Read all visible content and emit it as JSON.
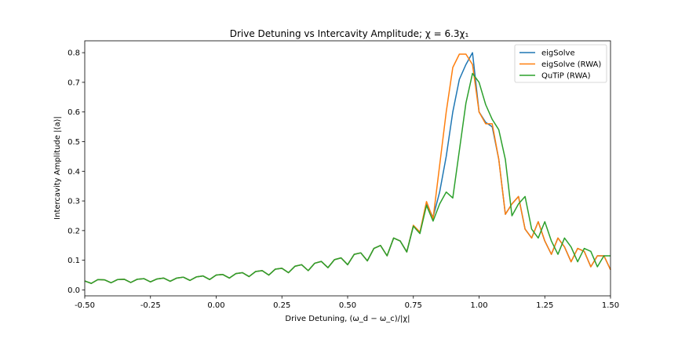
{
  "chart_data": {
    "type": "line",
    "title": "Drive Detuning vs Intercavity Amplitude; χ = 6.3χ₁",
    "xlabel": "Drive Detuning, (ω_d − ω_c)/|χ|",
    "ylabel": "Intercavity Amplitude |⟨a⟩|",
    "xlim": [
      -0.5,
      1.5
    ],
    "ylim": [
      -0.02,
      0.84
    ],
    "xticks": [
      "-0.50",
      "-0.25",
      "0.00",
      "0.25",
      "0.50",
      "0.75",
      "1.00",
      "1.25",
      "1.50"
    ],
    "xtick_values": [
      -0.5,
      -0.25,
      0.0,
      0.25,
      0.5,
      0.75,
      1.0,
      1.25,
      1.5
    ],
    "yticks": [
      "0.0",
      "0.1",
      "0.2",
      "0.3",
      "0.4",
      "0.5",
      "0.6",
      "0.7",
      "0.8"
    ],
    "ytick_values": [
      0.0,
      0.1,
      0.2,
      0.3,
      0.4,
      0.5,
      0.6,
      0.7,
      0.8
    ],
    "grid": false,
    "legend_position": "top-right",
    "x": [
      -0.5,
      -0.475,
      -0.45,
      -0.425,
      -0.4,
      -0.375,
      -0.35,
      -0.325,
      -0.3,
      -0.275,
      -0.25,
      -0.225,
      -0.2,
      -0.175,
      -0.15,
      -0.125,
      -0.1,
      -0.075,
      -0.05,
      -0.025,
      0.0,
      0.025,
      0.05,
      0.075,
      0.1,
      0.125,
      0.15,
      0.175,
      0.2,
      0.225,
      0.25,
      0.275,
      0.3,
      0.325,
      0.35,
      0.375,
      0.4,
      0.425,
      0.45,
      0.475,
      0.5,
      0.525,
      0.55,
      0.575,
      0.6,
      0.625,
      0.65,
      0.675,
      0.7,
      0.725,
      0.75,
      0.775,
      0.8,
      0.825,
      0.85,
      0.875,
      0.9,
      0.925,
      0.95,
      0.975,
      1.0,
      1.025,
      1.05,
      1.075,
      1.1,
      1.125,
      1.15,
      1.175,
      1.2,
      1.225,
      1.25,
      1.275,
      1.3,
      1.325,
      1.35,
      1.375,
      1.4,
      1.425,
      1.45,
      1.475,
      1.5
    ],
    "series": [
      {
        "name": "eigSolve",
        "color": "#1f77b4",
        "values": [
          0.03,
          0.022,
          0.035,
          0.034,
          0.024,
          0.035,
          0.036,
          0.025,
          0.036,
          0.038,
          0.027,
          0.037,
          0.04,
          0.029,
          0.04,
          0.043,
          0.032,
          0.044,
          0.047,
          0.035,
          0.05,
          0.052,
          0.04,
          0.055,
          0.058,
          0.045,
          0.062,
          0.065,
          0.05,
          0.07,
          0.073,
          0.058,
          0.08,
          0.085,
          0.065,
          0.09,
          0.096,
          0.075,
          0.102,
          0.108,
          0.085,
          0.12,
          0.125,
          0.098,
          0.14,
          0.15,
          0.115,
          0.175,
          0.165,
          0.128,
          0.215,
          0.195,
          0.29,
          0.245,
          0.33,
          0.45,
          0.6,
          0.71,
          0.76,
          0.8,
          0.6,
          0.565,
          0.55,
          0.44,
          0.255,
          0.29,
          0.315,
          0.205,
          0.175,
          0.23,
          0.165,
          0.12,
          0.175,
          0.145,
          0.095,
          0.14,
          0.13,
          0.078,
          0.115,
          0.115,
          0.068
        ]
      },
      {
        "name": "eigSolve (RWA)",
        "color": "#ff7f0e",
        "values": [
          0.03,
          0.022,
          0.035,
          0.034,
          0.024,
          0.035,
          0.036,
          0.025,
          0.036,
          0.038,
          0.027,
          0.037,
          0.04,
          0.029,
          0.04,
          0.043,
          0.032,
          0.044,
          0.047,
          0.035,
          0.05,
          0.052,
          0.04,
          0.055,
          0.058,
          0.045,
          0.062,
          0.065,
          0.05,
          0.07,
          0.073,
          0.058,
          0.08,
          0.085,
          0.065,
          0.09,
          0.096,
          0.075,
          0.102,
          0.108,
          0.085,
          0.12,
          0.125,
          0.098,
          0.14,
          0.15,
          0.115,
          0.175,
          0.165,
          0.128,
          0.218,
          0.195,
          0.298,
          0.24,
          0.42,
          0.6,
          0.75,
          0.795,
          0.795,
          0.76,
          0.6,
          0.56,
          0.56,
          0.44,
          0.255,
          0.29,
          0.315,
          0.205,
          0.175,
          0.23,
          0.165,
          0.12,
          0.175,
          0.145,
          0.095,
          0.14,
          0.13,
          0.078,
          0.115,
          0.115,
          0.068
        ]
      },
      {
        "name": "QuTiP (RWA)",
        "color": "#2ca02c",
        "values": [
          0.03,
          0.022,
          0.035,
          0.034,
          0.024,
          0.035,
          0.036,
          0.025,
          0.036,
          0.038,
          0.027,
          0.037,
          0.04,
          0.029,
          0.04,
          0.043,
          0.032,
          0.044,
          0.047,
          0.035,
          0.05,
          0.052,
          0.04,
          0.055,
          0.058,
          0.045,
          0.062,
          0.065,
          0.05,
          0.07,
          0.073,
          0.058,
          0.08,
          0.085,
          0.065,
          0.09,
          0.096,
          0.075,
          0.102,
          0.108,
          0.085,
          0.12,
          0.125,
          0.098,
          0.14,
          0.15,
          0.115,
          0.175,
          0.165,
          0.128,
          0.215,
          0.19,
          0.285,
          0.232,
          0.29,
          0.33,
          0.31,
          0.47,
          0.63,
          0.73,
          0.7,
          0.625,
          0.575,
          0.54,
          0.44,
          0.25,
          0.29,
          0.315,
          0.205,
          0.175,
          0.23,
          0.165,
          0.12,
          0.175,
          0.145,
          0.095,
          0.14,
          0.13,
          0.078,
          0.115,
          0.115
        ]
      }
    ]
  }
}
